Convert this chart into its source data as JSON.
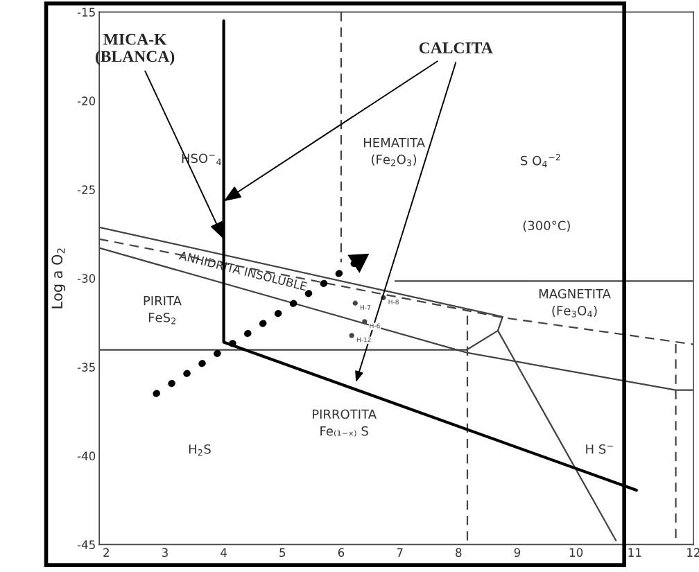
{
  "chart_data": {
    "type": "line",
    "ylabel": "Log a O$_{2}$",
    "xlim": [
      1.88,
      12.0
    ],
    "ylim": [
      -45,
      -15
    ],
    "xticks": [
      2,
      3,
      4,
      5,
      6,
      7,
      8,
      9,
      10,
      11,
      12
    ],
    "yticks": [
      -45,
      -40,
      -35,
      -30,
      -25,
      -20,
      -15
    ],
    "grid": false,
    "marker": "none",
    "series": [
      {
        "color": "#444444",
        "line_style": "solid",
        "x": [
          1.88,
          8.75
        ],
        "values": [
          -27.13,
          -32.17
        ]
      },
      {
        "color": "#444444",
        "line_style": "dashed",
        "x": [
          1.88,
          8.75,
          12.0
        ],
        "values": [
          -27.79,
          -32.21,
          -33.72
        ]
      },
      {
        "color": "#444444",
        "line_style": "solid",
        "x": [
          1.88,
          8.14,
          11.7,
          12.0
        ],
        "values": [
          -28.29,
          -34.19,
          -36.3,
          -36.3
        ]
      },
      {
        "color": "#444444",
        "line_style": "solid",
        "x": [
          1.88,
          8.14,
          8.67,
          8.75
        ],
        "values": [
          -34.03,
          -34.03,
          -32.95,
          -32.17
        ]
      },
      {
        "color": "#444444",
        "line_style": "solid",
        "x": [
          8.67,
          10.68
        ],
        "values": [
          -32.95,
          -44.77
        ]
      },
      {
        "color": "#444444",
        "line_style": "solid",
        "x": [
          6.92,
          12.0
        ],
        "values": [
          -30.16,
          -30.16
        ]
      },
      {
        "color": "#444444",
        "line_style": "dashed",
        "x": [
          6.0,
          6.0
        ],
        "values": [
          -15,
          -29.1
        ]
      },
      {
        "color": "#444444",
        "line_style": "dashed",
        "x": [
          8.15,
          8.15
        ],
        "values": [
          -32.1,
          -45
        ]
      },
      {
        "color": "#444444",
        "line_style": "dashed",
        "x": [
          11.7,
          11.7
        ],
        "values": [
          -33.7,
          -45
        ]
      },
      {
        "color": "#000000",
        "line_style": "solid",
        "x": [
          4.0,
          4.0,
          11.03
        ],
        "values": [
          -15.5,
          -33.6,
          -41.94
        ]
      },
      {
        "color": "#000000",
        "line_style": "dotted",
        "marker": "triangle",
        "x": [
          2.85,
          6.3
        ],
        "values": [
          -36.5,
          -29.0
        ]
      },
      {
        "type": "scatter",
        "color": "#444444",
        "marker": "circle",
        "x": [
          6.24,
          6.72,
          6.4,
          6.18
        ],
        "values": [
          -31.4,
          -31.09,
          -32.44,
          -33.22
        ],
        "value_labels": [
          "H-7",
          "H-8",
          "H-6",
          "H-12"
        ]
      }
    ],
    "annotations": [
      {
        "text": "MICA-K\n(BLANCA)",
        "x": 4.0,
        "y": -27.8
      },
      {
        "text": "CALCITA",
        "x": 4.0,
        "y": -25.66
      },
      "HSO$^{−}$$_{4}$",
      "HEMATITA\n(Fe$_{2}$O$_{3}$)",
      "S O$_{4}$$^{−2}$",
      "(300°C)",
      "PIRITA\nFeS$_{2}$",
      "ANHIDRITA INSOLUBLE",
      "MAGNETITA\n(Fe$_{3}$O$_{4}$)",
      "PIRROTITA\nFe₍₁₋ₓ₎ S",
      "H$_{2}$S",
      "H S$^{−}$"
    ]
  }
}
